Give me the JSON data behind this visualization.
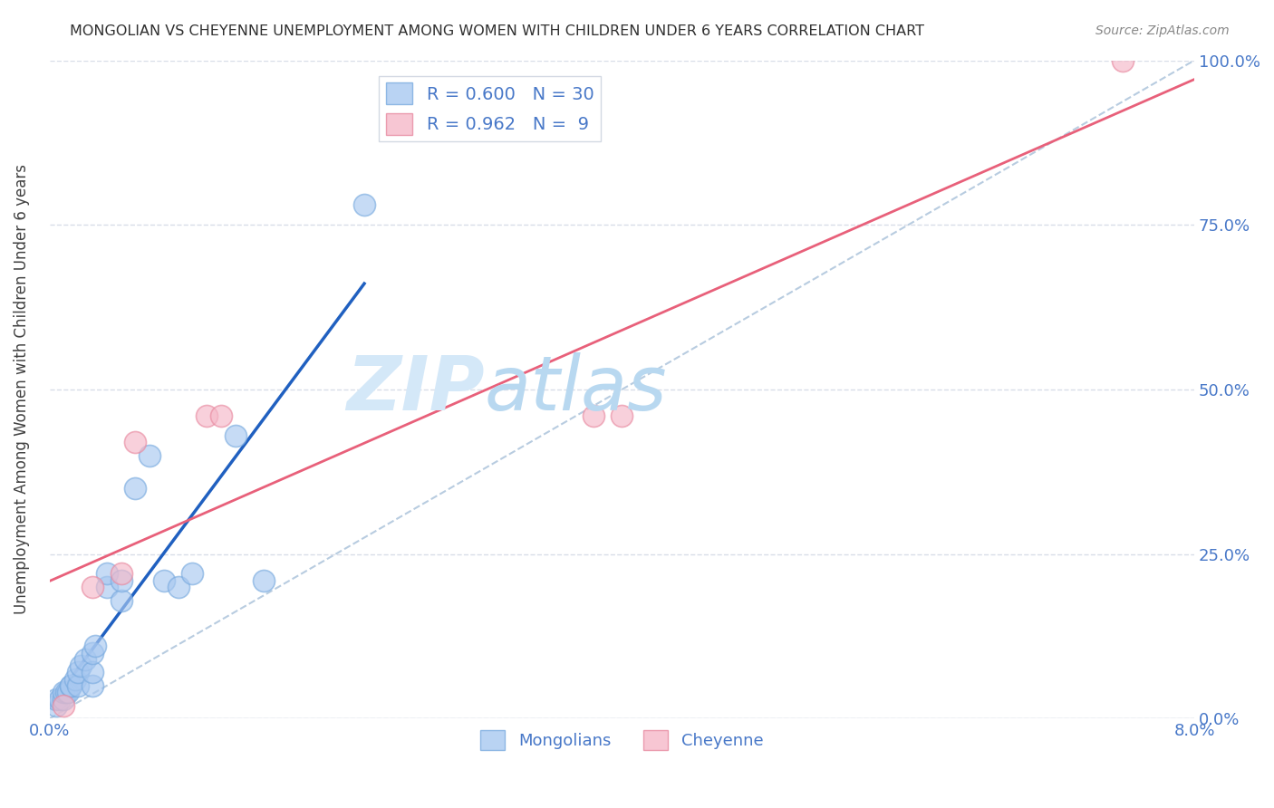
{
  "title": "MONGOLIAN VS CHEYENNE UNEMPLOYMENT AMONG WOMEN WITH CHILDREN UNDER 6 YEARS CORRELATION CHART",
  "source": "Source: ZipAtlas.com",
  "ylabel": "Unemployment Among Women with Children Under 6 years",
  "xlim": [
    0.0,
    0.08
  ],
  "ylim": [
    0.0,
    1.0
  ],
  "xticks": [
    0.0,
    0.01,
    0.02,
    0.03,
    0.04,
    0.05,
    0.06,
    0.07,
    0.08
  ],
  "xticklabels": [
    "0.0%",
    "",
    "",
    "",
    "",
    "",
    "",
    "",
    "8.0%"
  ],
  "yticks": [
    0.0,
    0.25,
    0.5,
    0.75,
    1.0
  ],
  "right_yticklabels": [
    "0.0%",
    "25.0%",
    "50.0%",
    "75.0%",
    "100.0%"
  ],
  "mongolian_x": [
    0.0005,
    0.0005,
    0.0007,
    0.001,
    0.001,
    0.0012,
    0.0013,
    0.0015,
    0.0015,
    0.0018,
    0.002,
    0.002,
    0.0022,
    0.0025,
    0.003,
    0.003,
    0.003,
    0.0032,
    0.004,
    0.004,
    0.005,
    0.005,
    0.006,
    0.007,
    0.008,
    0.009,
    0.01,
    0.013,
    0.015,
    0.022
  ],
  "mongolian_y": [
    0.02,
    0.03,
    0.03,
    0.03,
    0.04,
    0.04,
    0.04,
    0.05,
    0.05,
    0.06,
    0.05,
    0.07,
    0.08,
    0.09,
    0.05,
    0.07,
    0.1,
    0.11,
    0.2,
    0.22,
    0.18,
    0.21,
    0.35,
    0.4,
    0.21,
    0.2,
    0.22,
    0.43,
    0.21,
    0.78
  ],
  "cheyenne_x": [
    0.001,
    0.003,
    0.005,
    0.006,
    0.011,
    0.012,
    0.038,
    0.04,
    0.075
  ],
  "cheyenne_y": [
    0.02,
    0.2,
    0.22,
    0.42,
    0.46,
    0.46,
    0.46,
    0.46,
    1.0
  ],
  "mongolian_color": "#a8c8f0",
  "mongolian_edge_color": "#7aabdf",
  "cheyenne_color": "#f5b8c8",
  "cheyenne_edge_color": "#e88aa0",
  "mongolian_line_color": "#2060c0",
  "cheyenne_line_color": "#e8607a",
  "diagonal_color": "#b8cce0",
  "watermark_zip_color": "#d4e8f8",
  "watermark_atlas_color": "#b8d8f0",
  "legend_mongolian_R": "0.600",
  "legend_mongolian_N": "30",
  "legend_cheyenne_R": "0.962",
  "legend_cheyenne_N": " 9",
  "title_color": "#303030",
  "axis_tick_color": "#4878c8",
  "ylabel_color": "#404040",
  "grid_color": "#d8dde8",
  "background_color": "#ffffff",
  "source_color": "#888888"
}
